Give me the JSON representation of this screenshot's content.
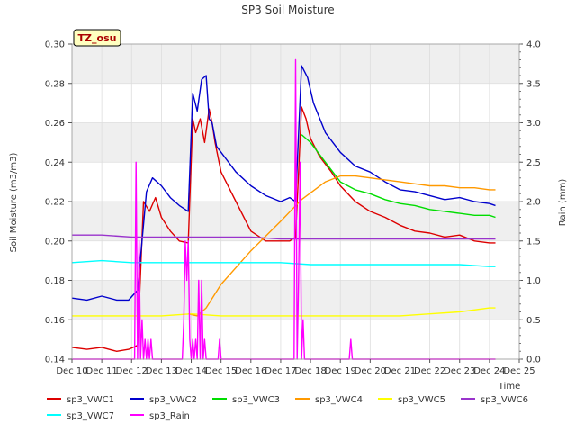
{
  "chart_data": {
    "type": "line",
    "title": "SP3 Soil Moisture",
    "xlabel": "Time",
    "ylabel": "Soil Moisture (m3/m3)",
    "y2label": "Rain (mm)",
    "badge": "TZ_osu",
    "xlim": [
      10,
      25
    ],
    "ylim": [
      0.14,
      0.3
    ],
    "y2lim": [
      0.0,
      4.0
    ],
    "x_ticks": [
      10,
      11,
      12,
      13,
      14,
      15,
      16,
      17,
      18,
      19,
      20,
      21,
      22,
      23,
      24,
      25
    ],
    "x_tick_labels": [
      "Dec 10",
      "Dec 11",
      "Dec 12",
      "Dec 13",
      "Dec 14",
      "Dec 15",
      "Dec 16",
      "Dec 17",
      "Dec 18",
      "Dec 19",
      "Dec 20",
      "Dec 21",
      "Dec 22",
      "Dec 23",
      "Dec 24",
      "Dec 25"
    ],
    "y_ticks": [
      0.14,
      0.16,
      0.18,
      0.2,
      0.22,
      0.24,
      0.26,
      0.28,
      0.3
    ],
    "y_tick_labels": [
      "0.14",
      "0.16",
      "0.18",
      "0.20",
      "0.22",
      "0.24",
      "0.26",
      "0.28",
      "0.30"
    ],
    "y2_ticks": [
      0.0,
      0.5,
      1.0,
      1.5,
      2.0,
      2.5,
      3.0,
      3.5,
      4.0
    ],
    "y2_tick_labels": [
      "0.0",
      "0.5",
      "1.0",
      "1.5",
      "2.0",
      "2.5",
      "3.0",
      "3.5",
      "4.0"
    ],
    "grid": true,
    "legend_position": "bottom",
    "series": [
      {
        "name": "sp3_VWC1",
        "color": "#dd0000",
        "axis": "left",
        "x": [
          10.0,
          10.5,
          11.0,
          11.5,
          11.9,
          12.2,
          12.4,
          12.6,
          12.8,
          13.0,
          13.3,
          13.6,
          13.9,
          14.05,
          14.15,
          14.3,
          14.45,
          14.6,
          14.7,
          14.8,
          15.0,
          15.5,
          16.0,
          16.5,
          17.0,
          17.3,
          17.5,
          17.7,
          17.85,
          18.0,
          18.3,
          18.7,
          19.0,
          19.5,
          20.0,
          20.5,
          21.0,
          21.5,
          22.0,
          22.5,
          23.0,
          23.5,
          24.0,
          24.2
        ],
        "y": [
          0.146,
          0.145,
          0.146,
          0.144,
          0.145,
          0.147,
          0.22,
          0.215,
          0.222,
          0.212,
          0.205,
          0.2,
          0.199,
          0.262,
          0.255,
          0.262,
          0.25,
          0.267,
          0.26,
          0.25,
          0.235,
          0.22,
          0.205,
          0.2,
          0.2,
          0.2,
          0.202,
          0.268,
          0.262,
          0.252,
          0.243,
          0.235,
          0.228,
          0.22,
          0.215,
          0.212,
          0.208,
          0.205,
          0.204,
          0.202,
          0.203,
          0.2,
          0.199,
          0.199
        ]
      },
      {
        "name": "sp3_VWC2",
        "color": "#0000cc",
        "axis": "left",
        "x": [
          10.0,
          10.5,
          11.0,
          11.5,
          11.9,
          12.2,
          12.5,
          12.7,
          13.0,
          13.3,
          13.6,
          13.9,
          14.05,
          14.2,
          14.35,
          14.5,
          14.6,
          14.7,
          14.85,
          15.0,
          15.5,
          16.0,
          16.5,
          17.0,
          17.3,
          17.5,
          17.7,
          17.9,
          18.1,
          18.5,
          19.0,
          19.5,
          20.0,
          20.5,
          21.0,
          21.5,
          22.0,
          22.5,
          23.0,
          23.5,
          24.0,
          24.2
        ],
        "y": [
          0.171,
          0.17,
          0.172,
          0.17,
          0.17,
          0.175,
          0.225,
          0.232,
          0.228,
          0.222,
          0.218,
          0.215,
          0.275,
          0.266,
          0.282,
          0.284,
          0.262,
          0.26,
          0.248,
          0.245,
          0.235,
          0.228,
          0.223,
          0.22,
          0.222,
          0.22,
          0.289,
          0.283,
          0.27,
          0.255,
          0.245,
          0.238,
          0.235,
          0.23,
          0.226,
          0.225,
          0.223,
          0.221,
          0.222,
          0.22,
          0.219,
          0.218
        ]
      },
      {
        "name": "sp3_VWC3",
        "color": "#00dd00",
        "axis": "left",
        "x": [
          17.7,
          18.0,
          18.5,
          19.0,
          19.5,
          20.0,
          20.5,
          21.0,
          21.5,
          22.0,
          22.5,
          23.0,
          23.5,
          24.0,
          24.2
        ],
        "y": [
          0.254,
          0.25,
          0.24,
          0.23,
          0.226,
          0.224,
          0.221,
          0.219,
          0.218,
          0.216,
          0.215,
          0.214,
          0.213,
          0.213,
          0.212
        ]
      },
      {
        "name": "sp3_VWC4",
        "color": "#ff9900",
        "axis": "left",
        "x": [
          13.9,
          14.2,
          14.5,
          15.0,
          16.0,
          17.0,
          17.7,
          18.5,
          19.0,
          19.5,
          20.0,
          20.5,
          21.0,
          21.5,
          22.0,
          22.5,
          23.0,
          23.5,
          24.0,
          24.2
        ],
        "y": [
          0.163,
          0.162,
          0.166,
          0.178,
          0.195,
          0.21,
          0.221,
          0.23,
          0.233,
          0.233,
          0.232,
          0.231,
          0.23,
          0.229,
          0.228,
          0.228,
          0.227,
          0.227,
          0.226,
          0.226
        ]
      },
      {
        "name": "sp3_VWC5",
        "color": "#ffff00",
        "axis": "left",
        "x": [
          10.0,
          11.0,
          12.0,
          13.0,
          14.0,
          15.0,
          16.0,
          17.0,
          18.0,
          19.0,
          20.0,
          21.0,
          22.0,
          23.0,
          24.0,
          24.2
        ],
        "y": [
          0.162,
          0.162,
          0.162,
          0.162,
          0.163,
          0.162,
          0.162,
          0.162,
          0.162,
          0.162,
          0.162,
          0.162,
          0.163,
          0.164,
          0.166,
          0.166
        ]
      },
      {
        "name": "sp3_VWC6",
        "color": "#9933cc",
        "axis": "left",
        "x": [
          10.0,
          11.0,
          12.0,
          13.0,
          14.0,
          15.0,
          16.0,
          17.0,
          18.0,
          19.0,
          20.0,
          21.0,
          22.0,
          23.0,
          24.0,
          24.2
        ],
        "y": [
          0.203,
          0.203,
          0.202,
          0.202,
          0.202,
          0.202,
          0.202,
          0.201,
          0.201,
          0.201,
          0.201,
          0.201,
          0.201,
          0.201,
          0.201,
          0.201
        ]
      },
      {
        "name": "sp3_VWC7",
        "color": "#00ffff",
        "axis": "left",
        "x": [
          10.0,
          11.0,
          12.0,
          13.0,
          14.0,
          15.0,
          16.0,
          17.0,
          18.0,
          19.0,
          20.0,
          21.0,
          22.0,
          23.0,
          24.0,
          24.2
        ],
        "y": [
          0.189,
          0.19,
          0.189,
          0.189,
          0.189,
          0.189,
          0.189,
          0.189,
          0.188,
          0.188,
          0.188,
          0.188,
          0.188,
          0.188,
          0.187,
          0.187
        ]
      },
      {
        "name": "sp3_Rain",
        "color": "#ff00ff",
        "axis": "right",
        "x": [
          10.0,
          12.1,
          12.15,
          12.2,
          12.25,
          12.3,
          12.35,
          12.4,
          12.45,
          12.5,
          12.55,
          12.6,
          12.65,
          12.7,
          12.75,
          12.8,
          12.85,
          13.7,
          13.75,
          13.8,
          13.85,
          13.9,
          13.95,
          14.0,
          14.05,
          14.1,
          14.15,
          14.2,
          14.25,
          14.3,
          14.35,
          14.4,
          14.45,
          14.5,
          14.55,
          14.6,
          14.65,
          14.7,
          14.75,
          14.8,
          14.85,
          14.9,
          14.95,
          15.0,
          15.05,
          17.4,
          17.45,
          17.5,
          17.55,
          17.6,
          17.65,
          17.7,
          17.75,
          17.8,
          17.85,
          17.9,
          19.3,
          19.35,
          19.4,
          24.2
        ],
        "y": [
          0,
          0,
          2.5,
          0,
          1.5,
          0,
          0.5,
          0,
          0.25,
          0,
          0.25,
          0,
          0.25,
          0,
          0,
          0,
          0,
          0,
          0.5,
          1.5,
          1.0,
          1.5,
          0.25,
          0,
          0.25,
          0,
          0.25,
          0,
          1.0,
          0,
          1.0,
          0,
          0.25,
          0,
          0,
          0,
          0,
          0,
          0,
          0,
          0,
          0,
          0.25,
          0,
          0,
          0,
          0,
          3.8,
          0,
          1.0,
          2.5,
          0,
          0.5,
          0,
          0,
          0,
          0,
          0.25,
          0,
          0
        ]
      }
    ]
  }
}
